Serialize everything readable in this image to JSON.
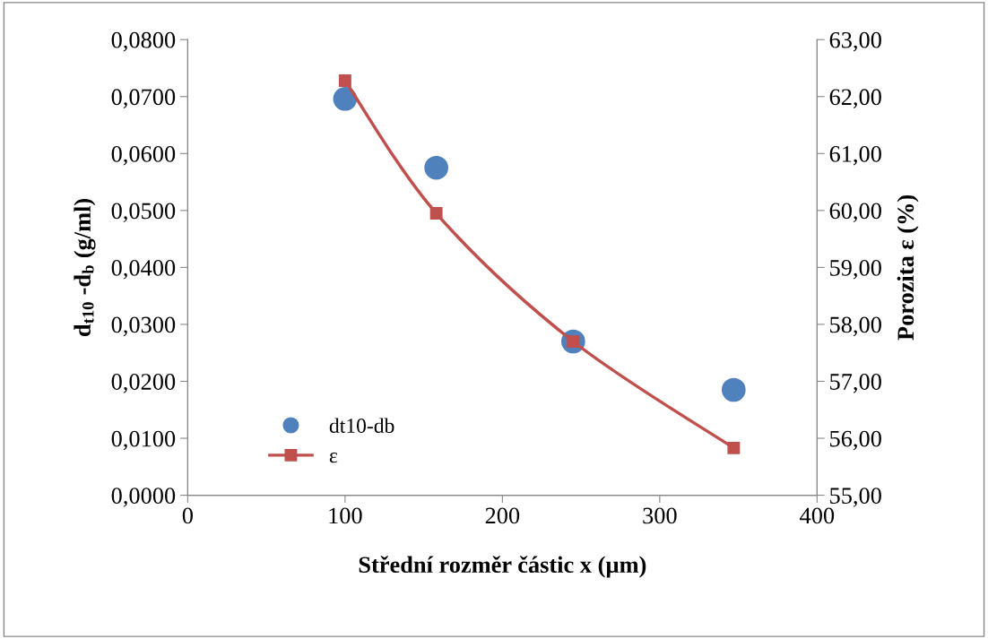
{
  "chart_data": {
    "type": "scatter",
    "xlabel": "Střední rozměr částic x (µm)",
    "ylabel": "d$_{t10}$ -d$_{b}$ (g/ml)",
    "y2label": "Porozita ε (%)",
    "xlim": [
      0,
      400
    ],
    "xticks": [
      0,
      100,
      200,
      300,
      400
    ],
    "ylim": [
      0,
      0.08
    ],
    "yticks": [
      {
        "value": 0,
        "label": "0,0000"
      },
      {
        "value": 0.01,
        "label": "0,0100"
      },
      {
        "value": 0.02,
        "label": "0,0200"
      },
      {
        "value": 0.03,
        "label": "0,0300"
      },
      {
        "value": 0.04,
        "label": "0,0400"
      },
      {
        "value": 0.05,
        "label": "0,0500"
      },
      {
        "value": 0.06,
        "label": "0,0600"
      },
      {
        "value": 0.07,
        "label": "0,0700"
      },
      {
        "value": 0.08,
        "label": "0,0800"
      }
    ],
    "y2lim": [
      55,
      63
    ],
    "y2ticks": [
      {
        "value": 55,
        "label": "55,00"
      },
      {
        "value": 56,
        "label": "56,00"
      },
      {
        "value": 57,
        "label": "57,00"
      },
      {
        "value": 58,
        "label": "58,00"
      },
      {
        "value": 59,
        "label": "59,00"
      },
      {
        "value": 60,
        "label": "60,00"
      },
      {
        "value": 61,
        "label": "61,00"
      },
      {
        "value": 62,
        "label": "62,00"
      },
      {
        "value": 63,
        "label": "63,00"
      }
    ],
    "grid": false,
    "legend": "bottom left",
    "series": [
      {
        "name": "dt10-db",
        "marker": "circle",
        "color": "#4f81bd",
        "x": [
          100,
          158,
          245,
          347
        ],
        "values": [
          0.0696,
          0.0575,
          0.027,
          0.0185
        ]
      },
      {
        "name": "ε",
        "type": "line",
        "axis": "y2",
        "marker": "square",
        "line_style": "solid",
        "color": "#c0504d",
        "x": [
          100,
          158,
          245,
          347
        ],
        "values": [
          62.28,
          59.95,
          57.7,
          55.83
        ]
      }
    ]
  }
}
